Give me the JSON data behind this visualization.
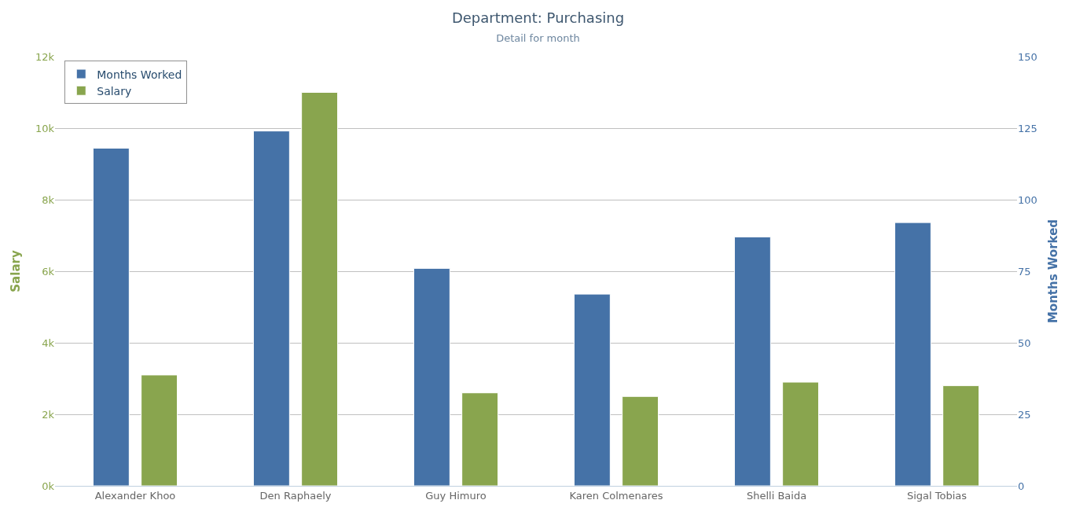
{
  "chart_data": {
    "type": "bar",
    "title": "Department: Purchasing",
    "subtitle": "Detail for month",
    "ylabel": "Salary",
    "y2label": "Months Worked",
    "categories": [
      "Alexander Khoo",
      "Den Raphaely",
      "Guy Himuro",
      "Karen Colmenares",
      "Shelli Baida",
      "Sigal Tobias"
    ],
    "series": [
      {
        "name": "Months Worked",
        "color": "#4572a7",
        "axis": "y2",
        "values": [
          118,
          124,
          76,
          67,
          87,
          92
        ]
      },
      {
        "name": "Salary",
        "color": "#89a54e",
        "values": [
          3100,
          11000,
          2600,
          2500,
          2900,
          2800
        ]
      }
    ],
    "ylim": [
      0,
      12000
    ],
    "yticks": [
      {
        "value": 0,
        "label": "0k"
      },
      {
        "value": 2000,
        "label": "2k"
      },
      {
        "value": 4000,
        "label": "4k"
      },
      {
        "value": 6000,
        "label": "6k"
      },
      {
        "value": 8000,
        "label": "8k"
      },
      {
        "value": 10000,
        "label": "10k"
      },
      {
        "value": 12000,
        "label": "12k"
      }
    ],
    "y2lim": [
      0,
      150
    ],
    "y2ticks": [
      0,
      25,
      50,
      75,
      100,
      125,
      150
    ],
    "grid": "y",
    "legend": "top left"
  }
}
